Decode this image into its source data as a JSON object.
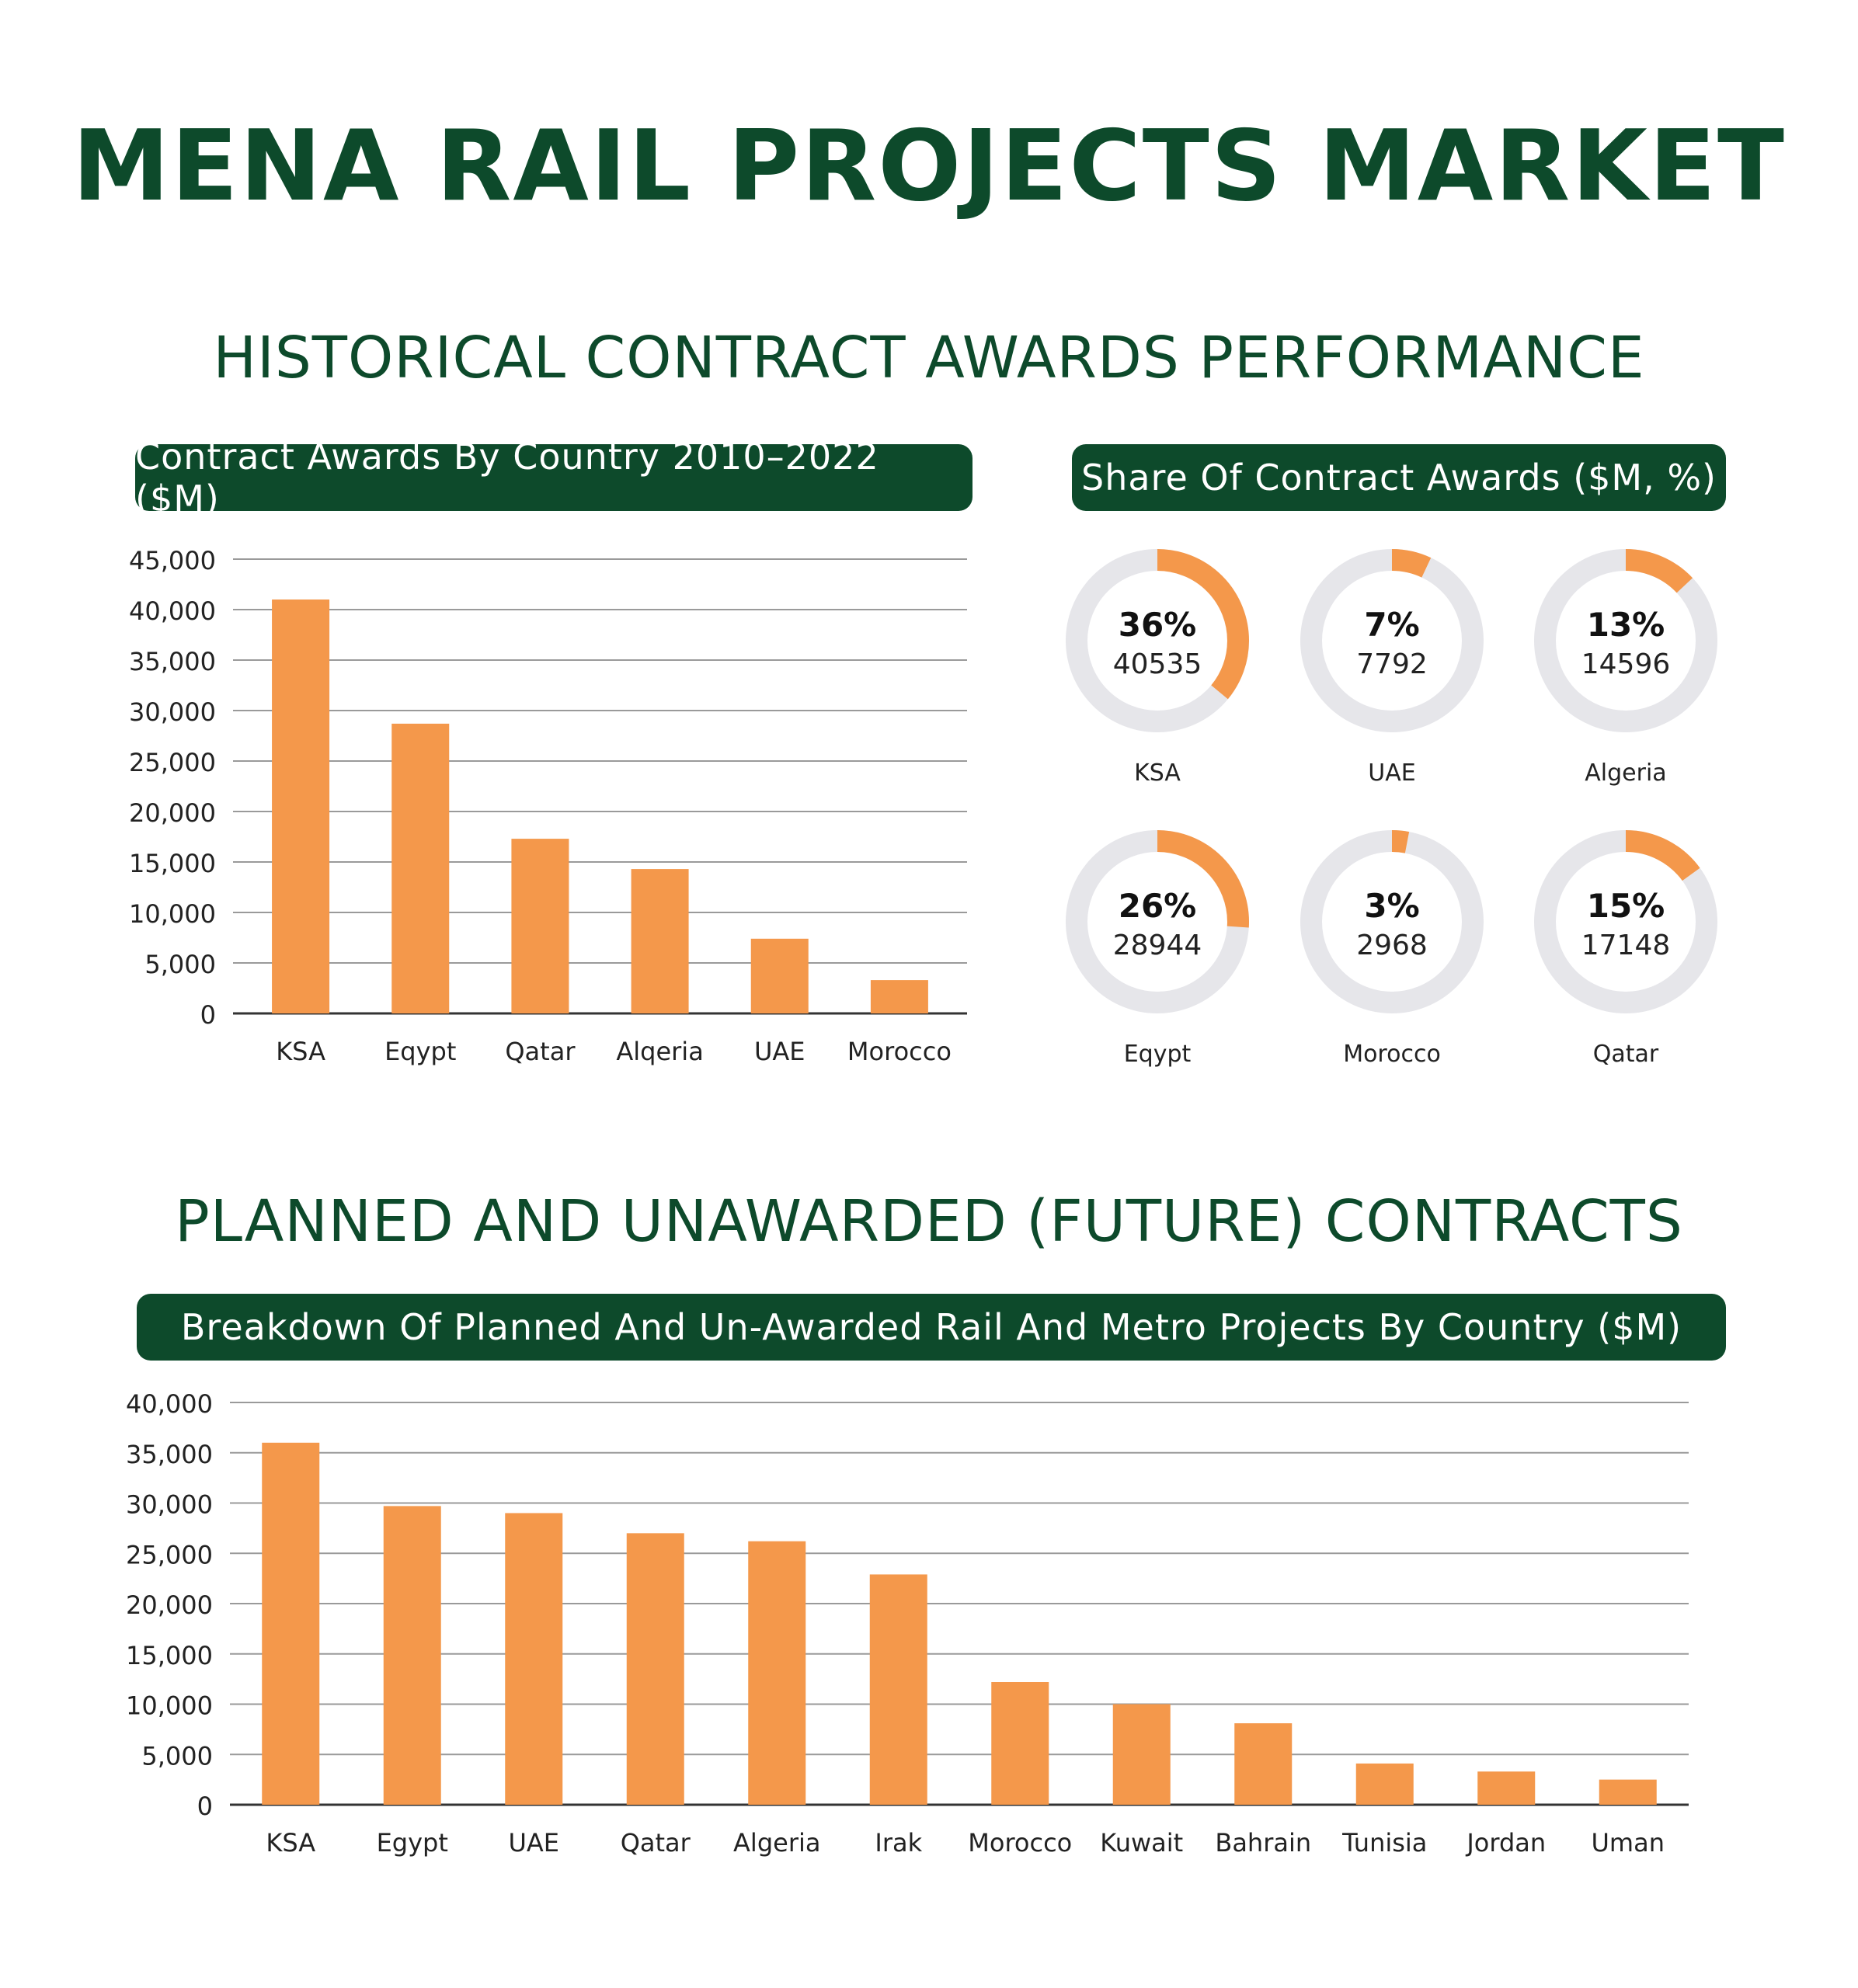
{
  "page": {
    "title": "MENA RAIL PROJECTS MARKET",
    "section1_title": "HISTORICAL CONTRACT AWARDS PERFORMANCE",
    "section2_title": "PLANNED AND UNAWARDED (FUTURE) CONTRACTS"
  },
  "colors": {
    "bar": "#f4984b",
    "dark_green": "#0d4a2b",
    "ring_bg": "#e6e6ea",
    "grid": "#9a9a9a"
  },
  "chart_data": [
    {
      "type": "bar",
      "title": "Contract Awards By Country 2010–2022 ($M)",
      "categories": [
        "KSA",
        "Eqypt",
        "Qatar",
        "Alqeria",
        "UAE",
        "Morocco"
      ],
      "values": [
        41000,
        28700,
        17300,
        14300,
        7400,
        3300
      ],
      "ylim": [
        0,
        45000
      ],
      "yticks": [
        0,
        5000,
        10000,
        15000,
        20000,
        25000,
        30000,
        35000,
        40000,
        45000
      ],
      "ytick_labels": [
        "0",
        "5,000",
        "10,000",
        "15,000",
        "20,000",
        "25,000",
        "30,000",
        "35,000",
        "40,000",
        "45,000"
      ],
      "xlabel": "",
      "ylabel": "",
      "grid": true
    },
    {
      "type": "pie",
      "title": "Share Of Contract Awards ($M, %)",
      "items": [
        {
          "country": "KSA",
          "percent_label": "36%",
          "value_label": "40535",
          "share": 0.36
        },
        {
          "country": "UAE",
          "percent_label": "7%",
          "value_label": "7792",
          "share": 0.07
        },
        {
          "country": "Algeria",
          "percent_label": "13%",
          "value_label": "14596",
          "share": 0.13
        },
        {
          "country": "Eqypt",
          "percent_label": "26%",
          "value_label": "28944",
          "share": 0.26
        },
        {
          "country": "Morocco",
          "percent_label": "3%",
          "value_label": "2968",
          "share": 0.03
        },
        {
          "country": "Qatar",
          "percent_label": "15%",
          "value_label": "17148",
          "share": 0.15
        }
      ]
    },
    {
      "type": "bar",
      "title": "Breakdown Of Planned And Un-Awarded Rail And Metro Projects By Country ($M)",
      "categories": [
        "KSA",
        "Egypt",
        "UAE",
        "Qatar",
        "Algeria",
        "Irak",
        "Morocco",
        "Kuwait",
        "Bahrain",
        "Tunisia",
        "Jordan",
        "Uman"
      ],
      "values": [
        36000,
        29700,
        29000,
        27000,
        26200,
        22900,
        12200,
        10000,
        8100,
        4100,
        3300,
        2500
      ],
      "ylim": [
        0,
        40000
      ],
      "yticks": [
        0,
        5000,
        10000,
        15000,
        20000,
        25000,
        30000,
        35000,
        40000
      ],
      "ytick_labels": [
        "0",
        "5,000",
        "10,000",
        "15,000",
        "20,000",
        "25,000",
        "30,000",
        "35,000",
        "40,000"
      ],
      "xlabel": "",
      "ylabel": "",
      "grid": true
    }
  ]
}
